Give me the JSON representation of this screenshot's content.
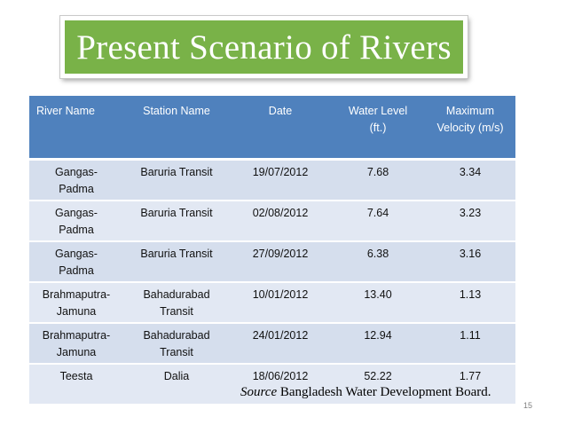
{
  "title": "Present Scenario of Rivers",
  "table": {
    "headers": [
      {
        "line1": "River Name",
        "line2": ""
      },
      {
        "line1": "Station Name",
        "line2": ""
      },
      {
        "line1": "Date",
        "line2": ""
      },
      {
        "line1": "Water Level",
        "line2": "(ft.)"
      },
      {
        "line1": "Maximum",
        "line2": "Velocity (m/s)"
      }
    ],
    "rows": [
      {
        "river": "Gangas-Padma",
        "river1": "Gangas-",
        "river2": "Padma",
        "station1": "Baruria Transit",
        "station2": "",
        "date": "19/07/2012",
        "level": "7.68",
        "velocity": "3.34"
      },
      {
        "river": "Gangas-Padma",
        "river1": "Gangas-",
        "river2": "Padma",
        "station1": "Baruria Transit",
        "station2": "",
        "date": "02/08/2012",
        "level": "7.64",
        "velocity": "3.23"
      },
      {
        "river": "Gangas-Padma",
        "river1": "Gangas-",
        "river2": "Padma",
        "station1": "Baruria Transit",
        "station2": "",
        "date": "27/09/2012",
        "level": "6.38",
        "velocity": "3.16"
      },
      {
        "river": "Brahmaputra-Jamuna",
        "river1": "Brahmaputra-",
        "river2": "Jamuna",
        "station1": "Bahadurabad",
        "station2": "Transit",
        "date": "10/01/2012",
        "level": "13.40",
        "velocity": "1.13"
      },
      {
        "river": "Brahmaputra-Jamuna",
        "river1": "Brahmaputra-",
        "river2": "Jamuna",
        "station1": "Bahadurabad",
        "station2": "Transit",
        "date": "24/01/2012",
        "level": "12.94",
        "velocity": "1.11"
      },
      {
        "river": "Teesta",
        "river1": "Teesta",
        "river2": "",
        "station1": "Dalia",
        "station2": "",
        "date": "18/06/2012",
        "level": "52.22",
        "velocity": "1.77"
      }
    ]
  },
  "source": {
    "label": "Source",
    "text": " Bangladesh Water Development Board."
  },
  "page_number": "15",
  "colors": {
    "title_bg": "#79b248",
    "header_bg": "#4f81bd",
    "row_bg_odd": "#d5deed",
    "row_bg_even": "#e2e8f3"
  }
}
